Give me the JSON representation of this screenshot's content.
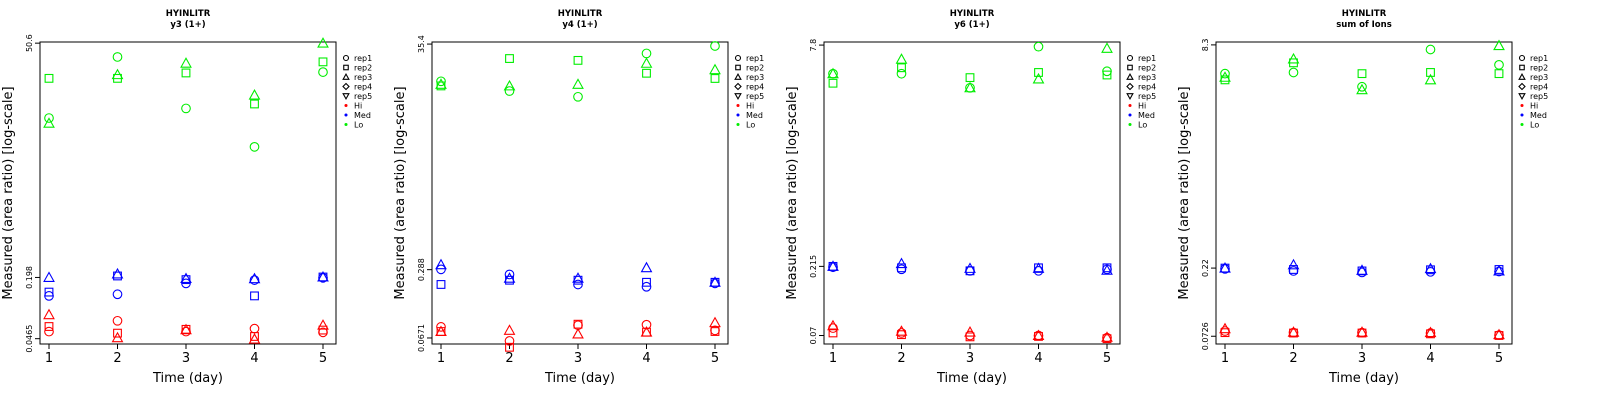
{
  "chart_data": [
    {
      "type": "scatter",
      "title": "HYINLITR",
      "subtitle": "y3 (1+)",
      "xlabel": "Time (day)",
      "ylabel": "Measured (area ratio) [log-scale]",
      "x_ticks": [
        "1",
        "2",
        "3",
        "4",
        "5"
      ],
      "y_ticks": [
        {
          "value": 0.0465,
          "label": "0.0465"
        },
        {
          "value": 0.198,
          "label": "0.198"
        },
        {
          "value": 50.6,
          "label": "50.6"
        }
      ],
      "ylim": [
        0.041,
        52
      ],
      "series": [
        {
          "name": "rep1",
          "group": "Lo",
          "shape": "circle",
          "points": [
            [
              1,
              8.6
            ],
            [
              2,
              36.5
            ],
            [
              3,
              10.8
            ],
            [
              4,
              4.35
            ],
            [
              5,
              25.5
            ]
          ]
        },
        {
          "name": "rep2",
          "group": "Lo",
          "shape": "square",
          "points": [
            [
              1,
              22.0
            ],
            [
              2,
              22.0
            ],
            [
              3,
              25.0
            ],
            [
              4,
              12.0
            ],
            [
              5,
              32.5
            ]
          ]
        },
        {
          "name": "rep3",
          "group": "Lo",
          "shape": "triangle",
          "points": [
            [
              1,
              7.6
            ],
            [
              2,
              24.0
            ],
            [
              3,
              31.5
            ],
            [
              4,
              14.8
            ],
            [
              5,
              50.6
            ]
          ]
        },
        {
          "name": "rep1",
          "group": "Med",
          "shape": "circle",
          "points": [
            [
              1,
              0.128
            ],
            [
              2,
              0.133
            ],
            [
              3,
              0.172
            ],
            [
              4,
              0.186
            ],
            [
              5,
              0.196
            ]
          ]
        },
        {
          "name": "rep2",
          "group": "Med",
          "shape": "square",
          "points": [
            [
              1,
              0.14
            ],
            [
              2,
              0.205
            ],
            [
              3,
              0.188
            ],
            [
              4,
              0.128
            ],
            [
              5,
              0.2
            ]
          ]
        },
        {
          "name": "rep3",
          "group": "Med",
          "shape": "triangle",
          "points": [
            [
              1,
              0.198
            ],
            [
              2,
              0.215
            ],
            [
              3,
              0.193
            ],
            [
              4,
              0.192
            ],
            [
              5,
              0.2
            ]
          ]
        },
        {
          "name": "rep1",
          "group": "Hi",
          "shape": "circle",
          "points": [
            [
              1,
              0.055
            ],
            [
              2,
              0.071
            ],
            [
              3,
              0.055
            ],
            [
              4,
              0.059
            ],
            [
              5,
              0.054
            ]
          ]
        },
        {
          "name": "rep2",
          "group": "Hi",
          "shape": "square",
          "points": [
            [
              1,
              0.062
            ],
            [
              2,
              0.053
            ],
            [
              3,
              0.058
            ],
            [
              4,
              0.049
            ],
            [
              5,
              0.057
            ]
          ]
        },
        {
          "name": "rep3",
          "group": "Hi",
          "shape": "triangle",
          "points": [
            [
              1,
              0.082
            ],
            [
              2,
              0.0475
            ],
            [
              3,
              0.0575
            ],
            [
              4,
              0.046
            ],
            [
              5,
              0.064
            ]
          ]
        }
      ]
    },
    {
      "type": "scatter",
      "title": "HYINLITR",
      "subtitle": "y4 (1+)",
      "xlabel": "Time (day)",
      "ylabel": "Measured (area ratio) [log-scale]",
      "x_ticks": [
        "1",
        "2",
        "3",
        "4",
        "5"
      ],
      "y_ticks": [
        {
          "value": 0.0671,
          "label": "0.0671"
        },
        {
          "value": 0.288,
          "label": "0.288"
        },
        {
          "value": 35.4,
          "label": "35.4"
        }
      ],
      "ylim": [
        0.059,
        37
      ],
      "series": [
        {
          "name": "rep1",
          "group": "Lo",
          "shape": "circle",
          "points": [
            [
              1,
              16.0
            ],
            [
              2,
              13.0
            ],
            [
              3,
              11.5
            ],
            [
              4,
              29.0
            ],
            [
              5,
              34.0
            ]
          ]
        },
        {
          "name": "rep2",
          "group": "Lo",
          "shape": "square",
          "points": [
            [
              1,
              14.5
            ],
            [
              2,
              26.0
            ],
            [
              3,
              25.0
            ],
            [
              4,
              19.0
            ],
            [
              5,
              17.0
            ]
          ]
        },
        {
          "name": "rep3",
          "group": "Lo",
          "shape": "triangle",
          "points": [
            [
              1,
              15.0
            ],
            [
              2,
              14.5
            ],
            [
              3,
              15.0
            ],
            [
              4,
              23.5
            ],
            [
              5,
              20.5
            ]
          ]
        },
        {
          "name": "rep1",
          "group": "Med",
          "shape": "circle",
          "points": [
            [
              1,
              0.29
            ],
            [
              2,
              0.26
            ],
            [
              3,
              0.21
            ],
            [
              4,
              0.2
            ],
            [
              5,
              0.215
            ]
          ]
        },
        {
          "name": "rep2",
          "group": "Med",
          "shape": "square",
          "points": [
            [
              1,
              0.21
            ],
            [
              2,
              0.23
            ],
            [
              3,
              0.23
            ],
            [
              4,
              0.22
            ],
            [
              5,
              0.22
            ]
          ]
        },
        {
          "name": "rep3",
          "group": "Med",
          "shape": "triangle",
          "points": [
            [
              1,
              0.32
            ],
            [
              2,
              0.24
            ],
            [
              3,
              0.24
            ],
            [
              4,
              0.3
            ],
            [
              5,
              0.22
            ]
          ]
        },
        {
          "name": "rep1",
          "group": "Hi",
          "shape": "circle",
          "points": [
            [
              1,
              0.085
            ],
            [
              2,
              0.063
            ],
            [
              3,
              0.088
            ],
            [
              4,
              0.089
            ],
            [
              5,
              0.079
            ]
          ]
        },
        {
          "name": "rep2",
          "group": "Hi",
          "shape": "square",
          "points": [
            [
              1,
              0.077
            ],
            [
              2,
              0.055
            ],
            [
              3,
              0.09
            ],
            [
              4,
              0.076
            ],
            [
              5,
              0.077
            ]
          ]
        },
        {
          "name": "rep3",
          "group": "Hi",
          "shape": "triangle",
          "points": [
            [
              1,
              0.077
            ],
            [
              2,
              0.079
            ],
            [
              3,
              0.073
            ],
            [
              4,
              0.076
            ],
            [
              5,
              0.093
            ]
          ]
        }
      ]
    },
    {
      "type": "scatter",
      "title": "HYINLITR",
      "subtitle": "y6 (1+)",
      "xlabel": "Time (day)",
      "ylabel": "Measured (area ratio) [log-scale]",
      "x_ticks": [
        "1",
        "2",
        "3",
        "4",
        "5"
      ],
      "y_ticks": [
        {
          "value": 0.07,
          "label": "0.07"
        },
        {
          "value": 0.215,
          "label": "0.215"
        },
        {
          "value": 7.8,
          "label": "7.8"
        }
      ],
      "ylim": [
        0.061,
        8.2
      ],
      "series": [
        {
          "name": "rep1",
          "group": "Lo",
          "shape": "circle",
          "points": [
            [
              1,
              4.9
            ],
            [
              2,
              4.9
            ],
            [
              3,
              3.9
            ],
            [
              4,
              7.6
            ],
            [
              5,
              5.1
            ]
          ]
        },
        {
          "name": "rep2",
          "group": "Lo",
          "shape": "square",
          "points": [
            [
              1,
              4.2
            ],
            [
              2,
              5.4
            ],
            [
              3,
              4.6
            ],
            [
              4,
              5.0
            ],
            [
              5,
              4.8
            ]
          ]
        },
        {
          "name": "rep3",
          "group": "Lo",
          "shape": "triangle",
          "points": [
            [
              1,
              4.9
            ],
            [
              2,
              6.2
            ],
            [
              3,
              3.9
            ],
            [
              4,
              4.5
            ],
            [
              5,
              7.4
            ]
          ]
        },
        {
          "name": "rep1",
          "group": "Med",
          "shape": "circle",
          "points": [
            [
              1,
              0.212
            ],
            [
              2,
              0.205
            ],
            [
              3,
              0.2
            ],
            [
              4,
              0.2
            ],
            [
              5,
              0.205
            ]
          ]
        },
        {
          "name": "rep2",
          "group": "Med",
          "shape": "square",
          "points": [
            [
              1,
              0.215
            ],
            [
              2,
              0.21
            ],
            [
              3,
              0.2
            ],
            [
              4,
              0.21
            ],
            [
              5,
              0.21
            ]
          ]
        },
        {
          "name": "rep3",
          "group": "Med",
          "shape": "triangle",
          "points": [
            [
              1,
              0.215
            ],
            [
              2,
              0.225
            ],
            [
              3,
              0.208
            ],
            [
              4,
              0.208
            ],
            [
              5,
              0.202
            ]
          ]
        },
        {
          "name": "rep1",
          "group": "Hi",
          "shape": "circle",
          "points": [
            [
              1,
              0.079
            ],
            [
              2,
              0.073
            ],
            [
              3,
              0.07
            ],
            [
              4,
              0.07
            ],
            [
              5,
              0.0675
            ]
          ]
        },
        {
          "name": "rep2",
          "group": "Hi",
          "shape": "square",
          "points": [
            [
              1,
              0.073
            ],
            [
              2,
              0.071
            ],
            [
              3,
              0.0685
            ],
            [
              4,
              0.069
            ],
            [
              5,
              0.0665
            ]
          ]
        },
        {
          "name": "rep3",
          "group": "Hi",
          "shape": "triangle",
          "points": [
            [
              1,
              0.082
            ],
            [
              2,
              0.075
            ],
            [
              3,
              0.074
            ],
            [
              4,
              0.07
            ],
            [
              5,
              0.068
            ]
          ]
        }
      ]
    },
    {
      "type": "scatter",
      "title": "HYINLITR",
      "subtitle": "sum of Ions",
      "xlabel": "Time (day)",
      "ylabel": "Measured (area ratio) [log-scale]",
      "x_ticks": [
        "1",
        "2",
        "3",
        "4",
        "5"
      ],
      "y_ticks": [
        {
          "value": 0.0726,
          "label": "0.0726"
        },
        {
          "value": 0.22,
          "label": "0.22"
        },
        {
          "value": 8.3,
          "label": "8.3"
        }
      ],
      "ylim": [
        0.064,
        8.7
      ],
      "series": [
        {
          "name": "rep1",
          "group": "Lo",
          "shape": "circle",
          "points": [
            [
              1,
              5.2
            ],
            [
              2,
              5.3
            ],
            [
              3,
              4.2
            ],
            [
              4,
              7.7
            ],
            [
              5,
              6.0
            ]
          ]
        },
        {
          "name": "rep2",
          "group": "Lo",
          "shape": "square",
          "points": [
            [
              1,
              4.7
            ],
            [
              2,
              6.2
            ],
            [
              3,
              5.2
            ],
            [
              4,
              5.3
            ],
            [
              5,
              5.2
            ]
          ]
        },
        {
          "name": "rep3",
          "group": "Lo",
          "shape": "triangle",
          "points": [
            [
              1,
              4.9
            ],
            [
              2,
              6.6
            ],
            [
              3,
              4.0
            ],
            [
              4,
              4.7
            ],
            [
              5,
              8.2
            ]
          ]
        },
        {
          "name": "rep1",
          "group": "Med",
          "shape": "circle",
          "points": [
            [
              1,
              0.217
            ],
            [
              2,
              0.21
            ],
            [
              3,
              0.205
            ],
            [
              4,
              0.207
            ],
            [
              5,
              0.208
            ]
          ]
        },
        {
          "name": "rep2",
          "group": "Med",
          "shape": "square",
          "points": [
            [
              1,
              0.22
            ],
            [
              2,
              0.215
            ],
            [
              3,
              0.21
            ],
            [
              4,
              0.214
            ],
            [
              5,
              0.215
            ]
          ]
        },
        {
          "name": "rep3",
          "group": "Med",
          "shape": "triangle",
          "points": [
            [
              1,
              0.22
            ],
            [
              2,
              0.232
            ],
            [
              3,
              0.212
            ],
            [
              4,
              0.218
            ],
            [
              5,
              0.21
            ]
          ]
        },
        {
          "name": "rep1",
          "group": "Hi",
          "shape": "circle",
          "points": [
            [
              1,
              0.079
            ],
            [
              2,
              0.077
            ],
            [
              3,
              0.077
            ],
            [
              4,
              0.0765
            ],
            [
              5,
              0.074
            ]
          ]
        },
        {
          "name": "rep2",
          "group": "Hi",
          "shape": "square",
          "points": [
            [
              1,
              0.077
            ],
            [
              2,
              0.0765
            ],
            [
              3,
              0.0765
            ],
            [
              4,
              0.0755
            ],
            [
              5,
              0.0735
            ]
          ]
        },
        {
          "name": "rep3",
          "group": "Hi",
          "shape": "triangle",
          "points": [
            [
              1,
              0.082
            ],
            [
              2,
              0.0775
            ],
            [
              3,
              0.0775
            ],
            [
              4,
              0.077
            ],
            [
              5,
              0.0745
            ]
          ]
        }
      ]
    }
  ],
  "legend": {
    "items": [
      {
        "label": "rep1",
        "shape": "circle"
      },
      {
        "label": "rep2",
        "shape": "square"
      },
      {
        "label": "rep3",
        "shape": "triangle"
      },
      {
        "label": "rep4",
        "shape": "diamond"
      },
      {
        "label": "rep5",
        "shape": "triangle-down"
      },
      {
        "label": "Hi",
        "shape": "dot",
        "group": "Hi"
      },
      {
        "label": "Med",
        "shape": "dot",
        "group": "Med"
      },
      {
        "label": "Lo",
        "shape": "dot",
        "group": "Lo"
      }
    ]
  },
  "colors": {
    "Hi": "#ff0000",
    "Med": "#0000ff",
    "Lo": "#00ee00",
    "ink": "#000000"
  }
}
